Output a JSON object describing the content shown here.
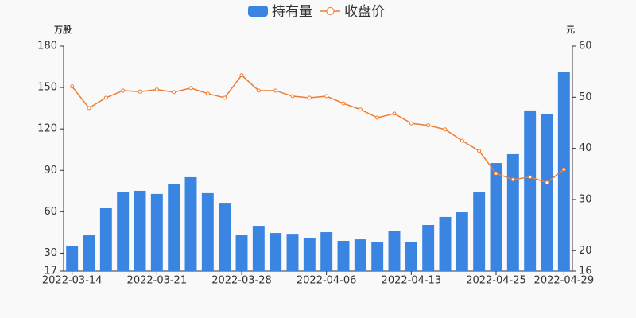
{
  "chart_data": {
    "type": "bar-line",
    "categories": [
      "2022-03-14",
      null,
      null,
      null,
      null,
      "2022-03-21",
      null,
      null,
      null,
      null,
      "2022-03-28",
      null,
      null,
      null,
      null,
      "2022-04-06",
      null,
      null,
      null,
      null,
      "2022-04-13",
      null,
      null,
      null,
      null,
      "2022-04-25",
      null,
      null,
      null,
      "2022-04-29"
    ],
    "y_label": "万股",
    "y2_label": "元",
    "ylim": [
      17,
      180
    ],
    "yticks": [
      17,
      30,
      60,
      90,
      120,
      150,
      180
    ],
    "y2lim": [
      16,
      60
    ],
    "y2ticks": [
      16,
      20,
      30,
      40,
      50,
      60
    ],
    "grid": false,
    "legend": "top",
    "series": [
      {
        "name": "持有量",
        "type": "bar",
        "color": "#3a84e2",
        "values": [
          35.4,
          42.9,
          62.5,
          74.6,
          75.2,
          72.9,
          79.8,
          85,
          73.5,
          66.5,
          42.9,
          49.8,
          44.6,
          44,
          41.2,
          45.2,
          38.9,
          40,
          38.3,
          45.8,
          38.3,
          50.4,
          56.2,
          59.6,
          74,
          95.3,
          101.7,
          133.4,
          131,
          161
        ]
      },
      {
        "name": "收盘价",
        "type": "line",
        "axis": "y2",
        "color": "#ee7c31",
        "values": [
          52.1,
          47.9,
          49.9,
          51.3,
          51.1,
          51.5,
          51.0,
          51.8,
          50.7,
          49.9,
          54.3,
          51.3,
          51.3,
          50.2,
          49.9,
          50.2,
          48.8,
          47.6,
          46.0,
          46.8,
          44.9,
          44.5,
          43.7,
          41.5,
          39.5,
          35.1,
          33.9,
          34.4,
          33.3,
          35.9
        ]
      }
    ]
  }
}
